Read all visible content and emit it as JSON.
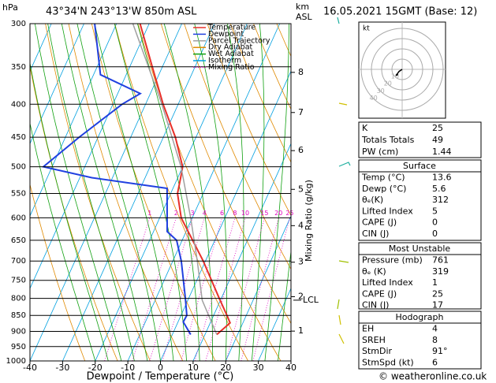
{
  "header": {
    "location": "43°34'N 243°13'W 850m ASL",
    "datetime": "16.05.2021 15GMT (Base: 12)"
  },
  "chart_data": {
    "type": "skewt",
    "xlabel": "Dewpoint / Temperature (°C)",
    "ylabel": "hPa",
    "xlim": [
      -40,
      40
    ],
    "xticks": [
      -40,
      -30,
      -20,
      -10,
      0,
      10,
      20,
      30,
      40
    ],
    "ylim": [
      1000,
      300
    ],
    "yticks": [
      300,
      350,
      400,
      450,
      500,
      550,
      600,
      650,
      700,
      750,
      800,
      850,
      900,
      950,
      1000
    ],
    "log_y": true,
    "grid": true,
    "series": [
      {
        "name": "Temperature",
        "color": "#e8302a",
        "pressure": [
          910,
          873,
          850,
          800,
          700,
          600,
          550,
          520,
          500,
          450,
          400,
          350,
          300
        ],
        "values": [
          13.6,
          16.1,
          14.1,
          9.4,
          -0.7,
          -13.4,
          -17.9,
          -19.1,
          -20,
          -26.3,
          -34.6,
          -43.1,
          -52.8
        ]
      },
      {
        "name": "Dewpoint",
        "color": "#2040e0",
        "pressure": [
          910,
          870,
          850,
          800,
          700,
          650,
          630,
          540,
          520,
          500,
          450,
          400,
          385,
          360,
          300
        ],
        "values": [
          5.6,
          1.6,
          1.8,
          -1,
          -7.4,
          -11.7,
          -15.8,
          -21.8,
          -46.3,
          -62.7,
          -55.8,
          -47.2,
          -43.1,
          -57.9,
          -66.7
        ]
      },
      {
        "name": "Parcel Trajectory",
        "color": "#a0a0a0",
        "pressure": [
          910,
          805,
          700,
          600,
          500,
          400,
          300
        ],
        "values": [
          13.6,
          4.4,
          -2.5,
          -10.5,
          -20.5,
          -35,
          -55
        ]
      }
    ],
    "background": [
      {
        "name": "Dry Adiabat",
        "color": "#e08a00"
      },
      {
        "name": "Wet Adiabat",
        "color": "#10a010"
      },
      {
        "name": "Isotherm",
        "color": "#00a0e0"
      },
      {
        "name": "Mixing Ratio",
        "color": "#e000c0",
        "ratios": [
          1,
          2,
          3,
          4,
          6,
          8,
          10,
          15,
          20,
          25
        ],
        "label_pressure": 600,
        "axis_label": "Mixing Ratio (g/kg)"
      }
    ],
    "km_axis": {
      "label": "km",
      "sublabel": "ASL",
      "ticks": [
        1,
        2,
        3,
        4,
        5,
        6,
        7,
        8
      ],
      "pressure": [
        899,
        795,
        703,
        617,
        542,
        472,
        412,
        357
      ]
    },
    "lcl": {
      "label": "LCL",
      "pressure": 805
    }
  },
  "hodograph": {
    "unit": "kt",
    "rings": [
      10,
      20,
      30,
      40
    ],
    "u": [
      0,
      -3,
      -6,
      -4
    ],
    "v": [
      0,
      -2,
      -6,
      -5
    ]
  },
  "tables": [
    {
      "rows": [
        [
          "K",
          "25"
        ],
        [
          "Totals Totals",
          "49"
        ],
        [
          "PW (cm)",
          "1.44"
        ]
      ]
    },
    {
      "title": "Surface",
      "rows": [
        [
          "Temp (°C)",
          "13.6"
        ],
        [
          "Dewp (°C)",
          "5.6"
        ],
        [
          "θₑ(K)",
          "312"
        ],
        [
          "Lifted Index",
          "5"
        ],
        [
          "CAPE (J)",
          "0"
        ],
        [
          "CIN (J)",
          "0"
        ]
      ]
    },
    {
      "title": "Most Unstable",
      "rows": [
        [
          "Pressure (mb)",
          "761"
        ],
        [
          "θₑ (K)",
          "319"
        ],
        [
          "Lifted Index",
          "1"
        ],
        [
          "CAPE (J)",
          "25"
        ],
        [
          "CIN (J)",
          "17"
        ]
      ]
    },
    {
      "title": "Hodograph",
      "rows": [
        [
          "EH",
          "4"
        ],
        [
          "SREH",
          "8"
        ],
        [
          "StmDir",
          "91°"
        ],
        [
          "StmSpd (kt)",
          "6"
        ]
      ]
    }
  ],
  "footer": "© weatheronline.co.uk"
}
